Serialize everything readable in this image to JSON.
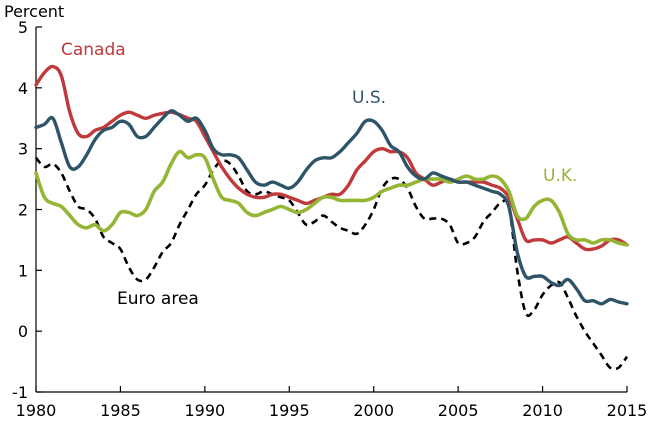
{
  "chart_data": {
    "type": "line",
    "title": "",
    "unit_label": "Percent",
    "xlim": [
      1980,
      2015
    ],
    "ylim": [
      -1,
      5
    ],
    "x_ticks": [
      "1980",
      "1985",
      "1990",
      "1995",
      "2000",
      "2005",
      "2010",
      "2015"
    ],
    "y_ticks": [
      "5",
      "4",
      "3",
      "2",
      "1",
      "0",
      "-1"
    ],
    "grid": false,
    "legend": "inline labels",
    "series": [
      {
        "name": "Canada",
        "color": "#c0393b",
        "dash": "solid",
        "points": [
          [
            1980,
            4.05
          ],
          [
            1980.5,
            4.25
          ],
          [
            1981,
            4.35
          ],
          [
            1981.5,
            4.2
          ],
          [
            1982,
            3.6
          ],
          [
            1982.5,
            3.25
          ],
          [
            1983,
            3.2
          ],
          [
            1983.5,
            3.3
          ],
          [
            1984,
            3.35
          ],
          [
            1984.5,
            3.45
          ],
          [
            1985,
            3.55
          ],
          [
            1985.5,
            3.6
          ],
          [
            1986,
            3.55
          ],
          [
            1986.5,
            3.5
          ],
          [
            1987,
            3.55
          ],
          [
            1987.5,
            3.58
          ],
          [
            1988,
            3.6
          ],
          [
            1988.5,
            3.56
          ],
          [
            1989,
            3.5
          ],
          [
            1989.5,
            3.45
          ],
          [
            1990,
            3.2
          ],
          [
            1990.5,
            2.95
          ],
          [
            1991,
            2.7
          ],
          [
            1991.5,
            2.5
          ],
          [
            1992,
            2.35
          ],
          [
            1992.5,
            2.25
          ],
          [
            1993,
            2.2
          ],
          [
            1993.5,
            2.2
          ],
          [
            1994,
            2.25
          ],
          [
            1994.5,
            2.25
          ],
          [
            1995,
            2.2
          ],
          [
            1995.5,
            2.15
          ],
          [
            1996,
            2.1
          ],
          [
            1996.5,
            2.15
          ],
          [
            1997,
            2.2
          ],
          [
            1997.5,
            2.25
          ],
          [
            1998,
            2.25
          ],
          [
            1998.5,
            2.4
          ],
          [
            1999,
            2.65
          ],
          [
            1999.5,
            2.8
          ],
          [
            2000,
            2.95
          ],
          [
            2000.5,
            3.0
          ],
          [
            2001,
            2.95
          ],
          [
            2001.5,
            2.95
          ],
          [
            2002,
            2.85
          ],
          [
            2002.5,
            2.6
          ],
          [
            2003,
            2.5
          ],
          [
            2003.5,
            2.4
          ],
          [
            2004,
            2.45
          ],
          [
            2004.5,
            2.5
          ],
          [
            2005,
            2.45
          ],
          [
            2005.5,
            2.45
          ],
          [
            2006,
            2.45
          ],
          [
            2006.5,
            2.45
          ],
          [
            2007,
            2.4
          ],
          [
            2007.5,
            2.35
          ],
          [
            2008,
            2.2
          ],
          [
            2008.5,
            1.85
          ],
          [
            2009,
            1.5
          ],
          [
            2009.5,
            1.5
          ],
          [
            2010,
            1.5
          ],
          [
            2010.5,
            1.45
          ],
          [
            2011,
            1.5
          ],
          [
            2011.5,
            1.55
          ],
          [
            2012,
            1.45
          ],
          [
            2012.5,
            1.35
          ],
          [
            2013,
            1.35
          ],
          [
            2013.5,
            1.4
          ],
          [
            2014,
            1.5
          ],
          [
            2014.5,
            1.5
          ],
          [
            2015,
            1.42
          ]
        ]
      },
      {
        "name": "U.S.",
        "color": "#2e5468",
        "dash": "solid",
        "points": [
          [
            1980,
            3.35
          ],
          [
            1980.5,
            3.4
          ],
          [
            1981,
            3.5
          ],
          [
            1981.5,
            3.1
          ],
          [
            1982,
            2.7
          ],
          [
            1982.5,
            2.7
          ],
          [
            1983,
            2.9
          ],
          [
            1983.5,
            3.15
          ],
          [
            1984,
            3.3
          ],
          [
            1984.5,
            3.35
          ],
          [
            1985,
            3.45
          ],
          [
            1985.5,
            3.4
          ],
          [
            1986,
            3.2
          ],
          [
            1986.5,
            3.2
          ],
          [
            1987,
            3.35
          ],
          [
            1987.5,
            3.5
          ],
          [
            1988,
            3.62
          ],
          [
            1988.5,
            3.55
          ],
          [
            1989,
            3.45
          ],
          [
            1989.5,
            3.5
          ],
          [
            1990,
            3.3
          ],
          [
            1990.5,
            3.0
          ],
          [
            1991,
            2.9
          ],
          [
            1991.5,
            2.9
          ],
          [
            1992,
            2.85
          ],
          [
            1992.5,
            2.65
          ],
          [
            1993,
            2.45
          ],
          [
            1993.5,
            2.4
          ],
          [
            1994,
            2.45
          ],
          [
            1994.5,
            2.4
          ],
          [
            1995,
            2.35
          ],
          [
            1995.5,
            2.45
          ],
          [
            1996,
            2.65
          ],
          [
            1996.5,
            2.8
          ],
          [
            1997,
            2.85
          ],
          [
            1997.5,
            2.85
          ],
          [
            1998,
            2.95
          ],
          [
            1998.5,
            3.1
          ],
          [
            1999,
            3.25
          ],
          [
            1999.5,
            3.45
          ],
          [
            2000,
            3.45
          ],
          [
            2000.5,
            3.3
          ],
          [
            2001,
            3.05
          ],
          [
            2001.5,
            2.95
          ],
          [
            2002,
            2.7
          ],
          [
            2002.5,
            2.55
          ],
          [
            2003,
            2.5
          ],
          [
            2003.5,
            2.6
          ],
          [
            2004,
            2.55
          ],
          [
            2004.5,
            2.5
          ],
          [
            2005,
            2.45
          ],
          [
            2005.5,
            2.45
          ],
          [
            2006,
            2.4
          ],
          [
            2006.5,
            2.35
          ],
          [
            2007,
            2.3
          ],
          [
            2007.5,
            2.25
          ],
          [
            2008,
            2.05
          ],
          [
            2008.5,
            1.3
          ],
          [
            2009,
            0.9
          ],
          [
            2009.5,
            0.9
          ],
          [
            2010,
            0.9
          ],
          [
            2010.5,
            0.8
          ],
          [
            2011,
            0.75
          ],
          [
            2011.5,
            0.85
          ],
          [
            2012,
            0.7
          ],
          [
            2012.5,
            0.5
          ],
          [
            2013,
            0.5
          ],
          [
            2013.5,
            0.45
          ],
          [
            2014,
            0.52
          ],
          [
            2014.5,
            0.48
          ],
          [
            2015,
            0.45
          ]
        ]
      },
      {
        "name": "U.K.",
        "color": "#95b535",
        "dash": "solid",
        "points": [
          [
            1980,
            2.6
          ],
          [
            1980.5,
            2.2
          ],
          [
            1981,
            2.1
          ],
          [
            1981.5,
            2.05
          ],
          [
            1982,
            1.9
          ],
          [
            1982.5,
            1.75
          ],
          [
            1983,
            1.7
          ],
          [
            1983.5,
            1.75
          ],
          [
            1984,
            1.65
          ],
          [
            1984.5,
            1.75
          ],
          [
            1985,
            1.95
          ],
          [
            1985.5,
            1.95
          ],
          [
            1986,
            1.9
          ],
          [
            1986.5,
            2.0
          ],
          [
            1987,
            2.3
          ],
          [
            1987.5,
            2.45
          ],
          [
            1988,
            2.75
          ],
          [
            1988.5,
            2.95
          ],
          [
            1989,
            2.85
          ],
          [
            1989.5,
            2.9
          ],
          [
            1990,
            2.85
          ],
          [
            1990.5,
            2.5
          ],
          [
            1991,
            2.2
          ],
          [
            1991.5,
            2.15
          ],
          [
            1992,
            2.1
          ],
          [
            1992.5,
            1.95
          ],
          [
            1993,
            1.9
          ],
          [
            1993.5,
            1.95
          ],
          [
            1994,
            2.0
          ],
          [
            1994.5,
            2.05
          ],
          [
            1995,
            2.0
          ],
          [
            1995.5,
            1.95
          ],
          [
            1996,
            2.0
          ],
          [
            1996.5,
            2.1
          ],
          [
            1997,
            2.2
          ],
          [
            1997.5,
            2.2
          ],
          [
            1998,
            2.15
          ],
          [
            1998.5,
            2.15
          ],
          [
            1999,
            2.15
          ],
          [
            1999.5,
            2.15
          ],
          [
            2000,
            2.2
          ],
          [
            2000.5,
            2.3
          ],
          [
            2001,
            2.35
          ],
          [
            2001.5,
            2.4
          ],
          [
            2002,
            2.4
          ],
          [
            2002.5,
            2.45
          ],
          [
            2003,
            2.5
          ],
          [
            2003.5,
            2.5
          ],
          [
            2004,
            2.5
          ],
          [
            2004.5,
            2.45
          ],
          [
            2005,
            2.5
          ],
          [
            2005.5,
            2.55
          ],
          [
            2006,
            2.5
          ],
          [
            2006.5,
            2.5
          ],
          [
            2007,
            2.55
          ],
          [
            2007.5,
            2.5
          ],
          [
            2008,
            2.3
          ],
          [
            2008.5,
            1.9
          ],
          [
            2009,
            1.85
          ],
          [
            2009.5,
            2.05
          ],
          [
            2010,
            2.15
          ],
          [
            2010.5,
            2.15
          ],
          [
            2011,
            1.95
          ],
          [
            2011.5,
            1.6
          ],
          [
            2012,
            1.5
          ],
          [
            2012.5,
            1.5
          ],
          [
            2013,
            1.45
          ],
          [
            2013.5,
            1.5
          ],
          [
            2014,
            1.5
          ],
          [
            2014.5,
            1.45
          ],
          [
            2015,
            1.42
          ]
        ]
      },
      {
        "name": "Euro area",
        "color": "#000000",
        "dash": "dashed",
        "points": [
          [
            1980,
            2.85
          ],
          [
            1980.5,
            2.7
          ],
          [
            1981,
            2.75
          ],
          [
            1981.5,
            2.6
          ],
          [
            1982,
            2.3
          ],
          [
            1982.5,
            2.05
          ],
          [
            1983,
            2.0
          ],
          [
            1983.5,
            1.85
          ],
          [
            1984,
            1.55
          ],
          [
            1984.5,
            1.45
          ],
          [
            1985,
            1.35
          ],
          [
            1985.5,
            1.05
          ],
          [
            1986,
            0.85
          ],
          [
            1986.5,
            0.85
          ],
          [
            1987,
            1.05
          ],
          [
            1987.5,
            1.3
          ],
          [
            1988,
            1.45
          ],
          [
            1988.5,
            1.75
          ],
          [
            1989,
            2.0
          ],
          [
            1989.5,
            2.25
          ],
          [
            1990,
            2.4
          ],
          [
            1990.5,
            2.65
          ],
          [
            1991,
            2.8
          ],
          [
            1991.5,
            2.75
          ],
          [
            1992,
            2.55
          ],
          [
            1992.5,
            2.3
          ],
          [
            1993,
            2.25
          ],
          [
            1993.5,
            2.3
          ],
          [
            1994,
            2.25
          ],
          [
            1994.5,
            2.2
          ],
          [
            1995,
            2.15
          ],
          [
            1995.5,
            1.95
          ],
          [
            1996,
            1.75
          ],
          [
            1996.5,
            1.8
          ],
          [
            1997,
            1.9
          ],
          [
            1997.5,
            1.8
          ],
          [
            1998,
            1.7
          ],
          [
            1998.5,
            1.65
          ],
          [
            1999,
            1.6
          ],
          [
            1999.5,
            1.75
          ],
          [
            2000,
            2.0
          ],
          [
            2000.5,
            2.35
          ],
          [
            2001,
            2.5
          ],
          [
            2001.5,
            2.5
          ],
          [
            2002,
            2.35
          ],
          [
            2002.5,
            2.05
          ],
          [
            2003,
            1.85
          ],
          [
            2003.5,
            1.85
          ],
          [
            2004,
            1.85
          ],
          [
            2004.5,
            1.75
          ],
          [
            2005,
            1.45
          ],
          [
            2005.5,
            1.45
          ],
          [
            2006,
            1.55
          ],
          [
            2006.5,
            1.8
          ],
          [
            2007,
            1.95
          ],
          [
            2007.5,
            2.1
          ],
          [
            2008,
            2.05
          ],
          [
            2008.5,
            1.0
          ],
          [
            2009,
            0.3
          ],
          [
            2009.5,
            0.35
          ],
          [
            2010,
            0.6
          ],
          [
            2010.5,
            0.75
          ],
          [
            2011,
            0.8
          ],
          [
            2011.5,
            0.55
          ],
          [
            2012,
            0.25
          ],
          [
            2012.5,
            0.0
          ],
          [
            2013,
            -0.2
          ],
          [
            2013.5,
            -0.4
          ],
          [
            2014,
            -0.6
          ],
          [
            2014.5,
            -0.6
          ],
          [
            2015,
            -0.42
          ]
        ]
      }
    ],
    "labels": {
      "canada": "Canada",
      "us": "U.S.",
      "uk": "U.K.",
      "euro": "Euro area"
    }
  }
}
